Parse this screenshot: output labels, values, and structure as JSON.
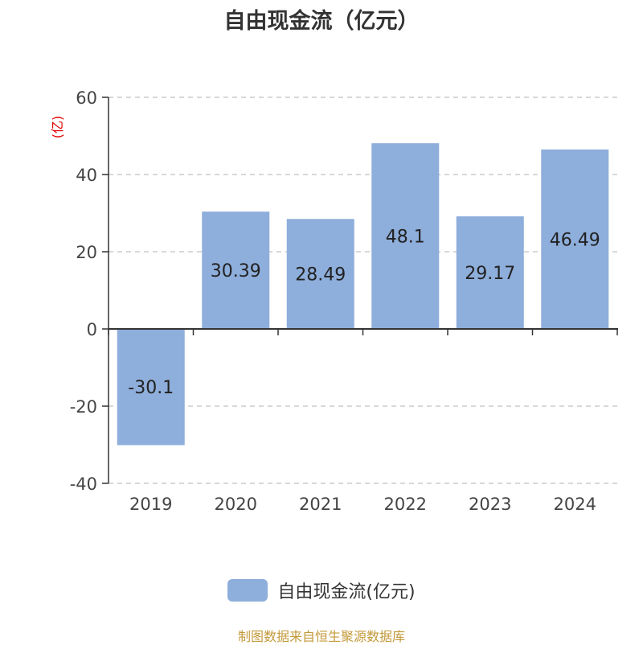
{
  "chart_data": {
    "type": "bar",
    "title": "自由现金流（亿元）",
    "ylabel": "(亿)",
    "categories": [
      "2019",
      "2020",
      "2021",
      "2022",
      "2023",
      "2024"
    ],
    "series": [
      {
        "name": "自由现金流(亿元)",
        "values": [
          -30.1,
          30.39,
          28.49,
          48.1,
          29.17,
          46.49
        ]
      }
    ],
    "data_labels": [
      "-30.1",
      "30.39",
      "28.49",
      "48.1",
      "29.17",
      "46.49"
    ],
    "yticks": [
      "60",
      "40",
      "20",
      "0",
      "-20",
      "-40"
    ],
    "ylim": [
      -40,
      60
    ],
    "grid": true,
    "legend_position": "bottom",
    "bar_color": "#8eaedb"
  },
  "source_note": "制图数据来自恒生聚源数据库"
}
